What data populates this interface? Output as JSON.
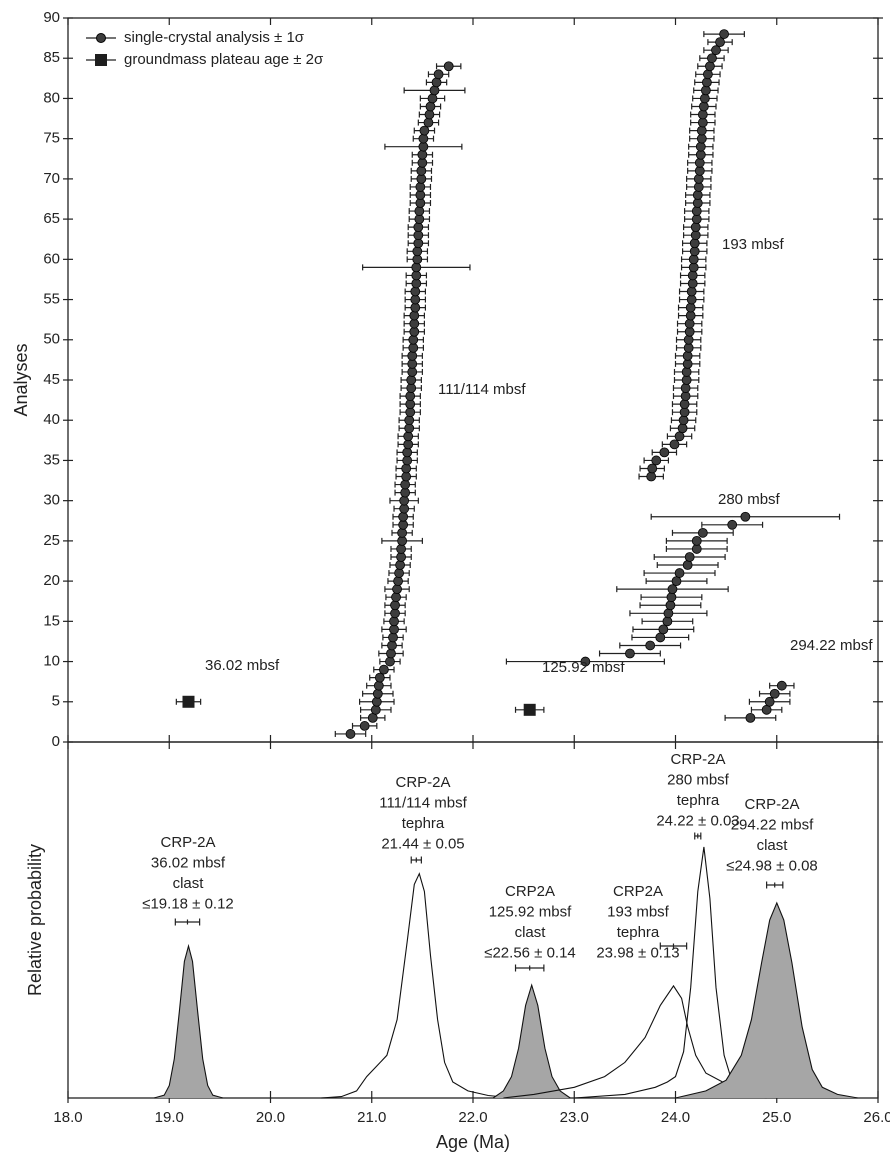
{
  "chart_data": [
    {
      "type": "scatter",
      "ylabel": "Analyses",
      "xlim": [
        18,
        26
      ],
      "ylim": [
        0,
        90
      ],
      "yticks": [
        0,
        5,
        10,
        15,
        20,
        25,
        30,
        35,
        40,
        45,
        50,
        55,
        60,
        65,
        70,
        75,
        80,
        85,
        90
      ],
      "legend": "upper left",
      "series": [
        {
          "name": "single-crystal analysis ± 1σ",
          "marker": "circle",
          "color": "#3d3d3d",
          "groups": [
            {
              "label": "111/114 mbsf",
              "y": [
                1,
                2,
                3,
                4,
                5,
                6,
                7,
                8,
                9,
                10,
                11,
                12,
                13,
                14,
                15,
                16,
                17,
                18,
                19,
                20,
                21,
                22,
                23,
                24,
                25,
                26,
                27,
                28,
                29,
                30,
                31,
                32,
                33,
                34,
                35,
                36,
                37,
                38,
                39,
                40,
                41,
                42,
                43,
                44,
                45,
                46,
                47,
                48,
                49,
                50,
                51,
                52,
                53,
                54,
                55,
                56,
                57,
                58,
                59,
                60,
                61,
                62,
                63,
                64,
                65,
                66,
                67,
                68,
                69,
                70,
                71,
                72,
                73,
                74,
                75,
                76,
                77,
                78,
                79,
                80,
                81,
                82,
                83,
                84
              ],
              "x": [
                20.79,
                20.93,
                21.01,
                21.04,
                21.05,
                21.06,
                21.07,
                21.08,
                21.12,
                21.18,
                21.19,
                21.2,
                21.21,
                21.22,
                21.22,
                21.23,
                21.23,
                21.24,
                21.25,
                21.26,
                21.27,
                21.28,
                21.29,
                21.29,
                21.3,
                21.3,
                21.31,
                21.31,
                21.32,
                21.32,
                21.33,
                21.33,
                21.34,
                21.34,
                21.35,
                21.35,
                21.36,
                21.36,
                21.37,
                21.37,
                21.38,
                21.38,
                21.38,
                21.39,
                21.39,
                21.4,
                21.4,
                21.4,
                21.41,
                21.41,
                21.42,
                21.42,
                21.42,
                21.43,
                21.43,
                21.43,
                21.44,
                21.44,
                21.44,
                21.45,
                21.45,
                21.46,
                21.46,
                21.46,
                21.47,
                21.47,
                21.48,
                21.48,
                21.48,
                21.49,
                21.49,
                21.5,
                21.5,
                21.51,
                21.51,
                21.52,
                21.56,
                21.57,
                21.58,
                21.6,
                21.62,
                21.64,
                21.66,
                21.76
              ],
              "err": [
                0.15,
                0.12,
                0.12,
                0.15,
                0.17,
                0.15,
                0.12,
                0.1,
                0.1,
                0.1,
                0.12,
                0.1,
                0.1,
                0.12,
                0.1,
                0.1,
                0.1,
                0.1,
                0.12,
                0.1,
                0.1,
                0.1,
                0.1,
                0.1,
                0.2,
                0.1,
                0.1,
                0.1,
                0.1,
                0.14,
                0.1,
                0.1,
                0.1,
                0.1,
                0.1,
                0.1,
                0.1,
                0.1,
                0.1,
                0.1,
                0.1,
                0.1,
                0.1,
                0.1,
                0.1,
                0.1,
                0.1,
                0.1,
                0.1,
                0.1,
                0.1,
                0.1,
                0.1,
                0.1,
                0.1,
                0.1,
                0.1,
                0.1,
                0.53,
                0.1,
                0.1,
                0.1,
                0.1,
                0.1,
                0.1,
                0.1,
                0.1,
                0.1,
                0.1,
                0.1,
                0.1,
                0.1,
                0.1,
                0.38,
                0.1,
                0.1,
                0.1,
                0.1,
                0.1,
                0.12,
                0.3,
                0.1,
                0.1,
                0.12
              ]
            },
            {
              "label": "193 mbsf",
              "y": [
                33,
                34,
                35,
                36,
                37,
                38,
                39,
                40,
                41,
                42,
                43,
                44,
                45,
                46,
                47,
                48,
                49,
                50,
                51,
                52,
                53,
                54,
                55,
                56,
                57,
                58,
                59,
                60,
                61,
                62,
                63,
                64,
                65,
                66,
                67,
                68,
                69,
                70,
                71,
                72,
                73,
                74,
                75,
                76,
                77,
                78,
                79,
                80,
                81,
                82,
                83,
                84,
                85,
                86,
                87,
                88
              ],
              "x": [
                23.76,
                23.77,
                23.81,
                23.89,
                23.99,
                24.04,
                24.07,
                24.08,
                24.09,
                24.09,
                24.1,
                24.1,
                24.11,
                24.11,
                24.12,
                24.12,
                24.13,
                24.13,
                24.14,
                24.14,
                24.15,
                24.15,
                24.16,
                24.16,
                24.17,
                24.17,
                24.18,
                24.18,
                24.19,
                24.19,
                24.2,
                24.2,
                24.21,
                24.21,
                24.22,
                24.22,
                24.23,
                24.23,
                24.24,
                24.24,
                24.25,
                24.25,
                24.26,
                24.26,
                24.27,
                24.27,
                24.28,
                24.29,
                24.3,
                24.31,
                24.32,
                24.34,
                24.36,
                24.4,
                24.44,
                24.48
              ],
              "err": [
                0.12,
                0.12,
                0.12,
                0.12,
                0.12,
                0.12,
                0.12,
                0.12,
                0.12,
                0.12,
                0.12,
                0.12,
                0.12,
                0.12,
                0.12,
                0.12,
                0.12,
                0.12,
                0.12,
                0.12,
                0.12,
                0.12,
                0.12,
                0.12,
                0.12,
                0.12,
                0.12,
                0.12,
                0.12,
                0.12,
                0.12,
                0.12,
                0.12,
                0.12,
                0.12,
                0.12,
                0.12,
                0.12,
                0.12,
                0.12,
                0.12,
                0.12,
                0.12,
                0.12,
                0.12,
                0.12,
                0.12,
                0.12,
                0.12,
                0.12,
                0.12,
                0.12,
                0.12,
                0.12,
                0.12,
                0.2
              ]
            },
            {
              "label": "280 mbsf",
              "y": [
                10,
                11,
                12,
                13,
                14,
                15,
                16,
                17,
                18,
                19,
                20,
                21,
                22,
                23,
                24,
                25,
                26,
                27,
                28
              ],
              "x": [
                23.11,
                23.55,
                23.75,
                23.85,
                23.88,
                23.92,
                23.93,
                23.95,
                23.96,
                23.97,
                24.01,
                24.04,
                24.12,
                24.14,
                24.21,
                24.21,
                24.27,
                24.56,
                24.69
              ],
              "err": [
                0.78,
                0.3,
                0.3,
                0.28,
                0.3,
                0.25,
                0.38,
                0.3,
                0.3,
                0.55,
                0.3,
                0.35,
                0.3,
                0.35,
                0.3,
                0.3,
                0.3,
                0.3,
                0.93
              ]
            },
            {
              "label": "294.22 mbsf",
              "y": [
                3,
                4,
                5,
                6,
                7
              ],
              "x": [
                24.74,
                24.9,
                24.93,
                24.98,
                25.05
              ],
              "err": [
                0.25,
                0.15,
                0.2,
                0.15,
                0.12
              ]
            }
          ]
        },
        {
          "name": "groundmass plateau age ± 2σ",
          "marker": "square",
          "color": "#1e1e1e",
          "groups": [
            {
              "label": "36.02 mbsf",
              "y": [
                5
              ],
              "x": [
                19.19
              ],
              "err": [
                0.12
              ]
            },
            {
              "label": "125.92 mbsf",
              "y": [
                4
              ],
              "x": [
                22.56
              ],
              "err": [
                0.14
              ]
            }
          ]
        }
      ]
    },
    {
      "type": "area",
      "xlabel": "Age (Ma)",
      "ylabel": "Relative probability",
      "xlim": [
        18,
        26
      ],
      "ylim": [
        0,
        1
      ],
      "xticks": [
        {
          "value": 18,
          "label": "18.0"
        },
        {
          "value": 19,
          "label": "19.0"
        },
        {
          "value": 20,
          "label": "20.0"
        },
        {
          "value": 21,
          "label": "21.0"
        },
        {
          "value": 22,
          "label": "22.0"
        },
        {
          "value": 23,
          "label": "23.0"
        },
        {
          "value": 24,
          "label": "24.0"
        },
        {
          "value": 25,
          "label": "25.0"
        },
        {
          "value": 26,
          "label": "26.0"
        }
      ],
      "series": [
        {
          "label": [
            "CRP-2A",
            "36.02 mbsf",
            "clast",
            "≤19.18 ± 0.12"
          ],
          "age": 19.18,
          "err": 0.12,
          "color": "#a6a6a6",
          "x": [
            18.85,
            18.95,
            19.0,
            19.05,
            19.1,
            19.15,
            19.19,
            19.23,
            19.28,
            19.33,
            19.38,
            19.43,
            19.53
          ],
          "values": [
            0,
            0.008,
            0.035,
            0.11,
            0.244,
            0.384,
            0.427,
            0.384,
            0.244,
            0.11,
            0.035,
            0.008,
            0
          ]
        },
        {
          "label": [
            "CRP-2A",
            "111/114 mbsf",
            "tephra",
            "21.44 ± 0.05"
          ],
          "age": 21.44,
          "err": 0.05,
          "color": "none",
          "x": [
            20.5,
            20.7,
            20.85,
            20.95,
            21.05,
            21.15,
            21.25,
            21.35,
            21.42,
            21.47,
            21.52,
            21.58,
            21.65,
            21.72,
            21.8,
            21.95,
            22.15,
            22.4
          ],
          "values": [
            0,
            0.004,
            0.02,
            0.06,
            0.09,
            0.12,
            0.22,
            0.44,
            0.6,
            0.63,
            0.58,
            0.4,
            0.22,
            0.1,
            0.045,
            0.02,
            0.007,
            0
          ]
        },
        {
          "label": [
            "CRP2A",
            "125.92 mbsf",
            "clast",
            "≤22.56 ± 0.14"
          ],
          "age": 22.56,
          "err": 0.14,
          "color": "#a6a6a6",
          "x": [
            22.2,
            22.3,
            22.38,
            22.45,
            22.52,
            22.58,
            22.64,
            22.71,
            22.78,
            22.86,
            22.96
          ],
          "values": [
            0,
            0.02,
            0.06,
            0.14,
            0.26,
            0.317,
            0.26,
            0.14,
            0.06,
            0.02,
            0
          ]
        },
        {
          "label": [
            "CRP2A",
            "193 mbsf",
            "tephra",
            "23.98 ± 0.13"
          ],
          "age": 23.98,
          "err": 0.13,
          "color": "none",
          "x": [
            22.3,
            22.6,
            23.0,
            23.3,
            23.5,
            23.7,
            23.85,
            23.98,
            24.06,
            24.12,
            24.2,
            24.3,
            24.5,
            24.8,
            25.2,
            25.6
          ],
          "values": [
            0,
            0.01,
            0.03,
            0.06,
            0.1,
            0.17,
            0.26,
            0.315,
            0.28,
            0.2,
            0.12,
            0.07,
            0.04,
            0.02,
            0.007,
            0
          ]
        },
        {
          "label": [
            "CRP-2A",
            "280 mbsf",
            "tephra",
            "24.22 ± 0.03"
          ],
          "age": 24.22,
          "err": 0.03,
          "color": "none",
          "x": [
            23.0,
            23.5,
            23.8,
            23.92,
            24.0,
            24.08,
            24.15,
            24.22,
            24.28,
            24.34,
            24.4,
            24.48,
            24.56,
            24.7,
            24.9
          ],
          "values": [
            0,
            0.01,
            0.03,
            0.045,
            0.06,
            0.13,
            0.31,
            0.58,
            0.705,
            0.56,
            0.31,
            0.12,
            0.045,
            0.013,
            0
          ]
        },
        {
          "label": [
            "CRP-2A",
            "294.22 mbsf",
            "clast",
            "≤24.98 ± 0.08"
          ],
          "age": 24.98,
          "err": 0.08,
          "color": "#a6a6a6",
          "x": [
            24.0,
            24.3,
            24.5,
            24.65,
            24.75,
            24.85,
            24.93,
            25.0,
            25.07,
            25.15,
            25.25,
            25.35,
            25.45,
            25.6,
            25.8
          ],
          "values": [
            0,
            0.02,
            0.05,
            0.12,
            0.22,
            0.38,
            0.5,
            0.548,
            0.5,
            0.38,
            0.2,
            0.08,
            0.03,
            0.01,
            0
          ]
        }
      ]
    }
  ]
}
